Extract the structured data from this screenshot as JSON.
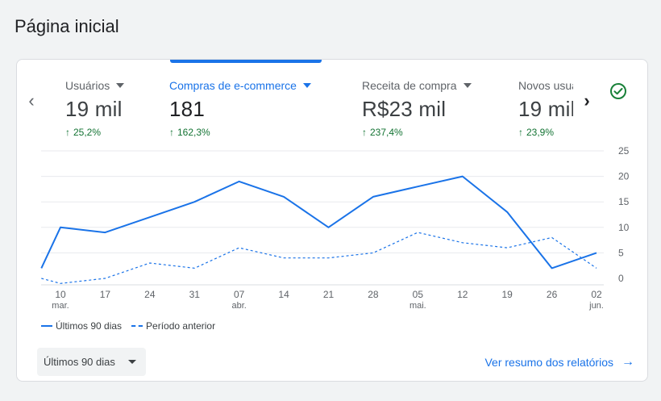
{
  "page": {
    "title": "Página inicial"
  },
  "metrics": [
    {
      "label": "Usuários",
      "value": "19 mil",
      "change": "25,2%",
      "active": false
    },
    {
      "label": "Compras de e-commerce",
      "value": "181",
      "change": "162,3%",
      "active": true
    },
    {
      "label": "Receita de compra",
      "value": "R$23 mil",
      "change": "237,4%",
      "active": false
    },
    {
      "label": "Novos usuários",
      "value": "19 mil",
      "change": "23,9%",
      "active": false
    }
  ],
  "icons": {
    "nav_prev": "chevron-left-icon",
    "nav_next": "chevron-right-icon",
    "status": "check-circle-icon",
    "change_up": "arrow-up-icon",
    "dropdown": "caret-down-icon",
    "link_arrow": "arrow-right-icon"
  },
  "colors": {
    "accent": "#1a73e8",
    "positive": "#137333",
    "status": "#188038"
  },
  "chart_data": {
    "type": "line",
    "x_ticks": [
      {
        "day": "10",
        "month": "mar."
      },
      {
        "day": "17",
        "month": ""
      },
      {
        "day": "24",
        "month": ""
      },
      {
        "day": "31",
        "month": ""
      },
      {
        "day": "07",
        "month": "abr."
      },
      {
        "day": "14",
        "month": ""
      },
      {
        "day": "21",
        "month": ""
      },
      {
        "day": "28",
        "month": ""
      },
      {
        "day": "05",
        "month": "mai."
      },
      {
        "day": "12",
        "month": ""
      },
      {
        "day": "19",
        "month": ""
      },
      {
        "day": "26",
        "month": ""
      },
      {
        "day": "02",
        "month": "jun."
      }
    ],
    "y_ticks": [
      0,
      5,
      10,
      15,
      20,
      25
    ],
    "ylim": [
      0,
      25
    ],
    "series": [
      {
        "name": "Últimos 90 dias",
        "style": "solid",
        "points": [
          {
            "x": "2024-03-07",
            "y": 2
          },
          {
            "x": "2024-03-10",
            "y": 10
          },
          {
            "x": "2024-03-17",
            "y": 9
          },
          {
            "x": "2024-03-24",
            "y": 12
          },
          {
            "x": "2024-03-31",
            "y": 15
          },
          {
            "x": "2024-04-07",
            "y": 19
          },
          {
            "x": "2024-04-14",
            "y": 16
          },
          {
            "x": "2024-04-21",
            "y": 10
          },
          {
            "x": "2024-04-28",
            "y": 16
          },
          {
            "x": "2024-05-05",
            "y": 18
          },
          {
            "x": "2024-05-12",
            "y": 20
          },
          {
            "x": "2024-05-19",
            "y": 13
          },
          {
            "x": "2024-05-26",
            "y": 2
          },
          {
            "x": "2024-06-02",
            "y": 5
          }
        ]
      },
      {
        "name": "Período anterior",
        "style": "dashed",
        "points": [
          {
            "x": "2024-03-07",
            "y": 0
          },
          {
            "x": "2024-03-10",
            "y": -1
          },
          {
            "x": "2024-03-17",
            "y": 0
          },
          {
            "x": "2024-03-24",
            "y": 3
          },
          {
            "x": "2024-03-31",
            "y": 2
          },
          {
            "x": "2024-04-07",
            "y": 6
          },
          {
            "x": "2024-04-14",
            "y": 4
          },
          {
            "x": "2024-04-21",
            "y": 4
          },
          {
            "x": "2024-04-28",
            "y": 5
          },
          {
            "x": "2024-05-05",
            "y": 9
          },
          {
            "x": "2024-05-12",
            "y": 7
          },
          {
            "x": "2024-05-19",
            "y": 6
          },
          {
            "x": "2024-05-26",
            "y": 8
          },
          {
            "x": "2024-06-02",
            "y": 2
          }
        ]
      }
    ],
    "grid": true,
    "legend_position": "bottom-left"
  },
  "legend": {
    "current": "Últimos 90 dias",
    "previous": "Período anterior"
  },
  "controls": {
    "date_range": "Últimos 90 dias",
    "report_link": "Ver resumo dos relatórios"
  }
}
